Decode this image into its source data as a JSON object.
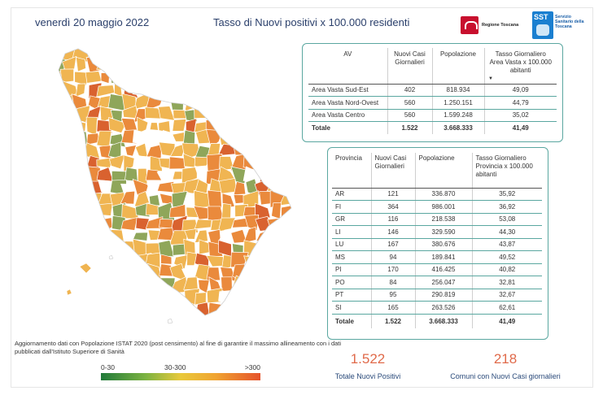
{
  "header": {
    "date": "venerdì 20 maggio 2022",
    "title": "Tasso di Nuovi positivi x 100.000 residenti",
    "logo_rt": "Regione Toscana",
    "logo_sst_mark": "SST",
    "logo_sst_text": "Servizio Sanitario della Toscana"
  },
  "area_vasta_table": {
    "headers": [
      "AV",
      "Nuovi Casi Giornalieri",
      "Popolazione",
      "Tasso Giornaliero Area Vasta x 100.000 abitanti"
    ],
    "rows": [
      [
        "Area Vasta Sud-Est",
        "402",
        "818.934",
        "49,09"
      ],
      [
        "Area Vasta Nord-Ovest",
        "560",
        "1.250.151",
        "44,79"
      ],
      [
        "Area Vasta Centro",
        "560",
        "1.599.248",
        "35,02"
      ]
    ],
    "total": [
      "Totale",
      "1.522",
      "3.668.333",
      "41,49"
    ]
  },
  "provincia_table": {
    "headers": [
      "Provincia",
      "Nuovi Casi Giornalieri",
      "Popolazione",
      "Tasso Giornaliero Provincia x 100.000 abitanti"
    ],
    "rows": [
      [
        "AR",
        "121",
        "336.870",
        "35,92"
      ],
      [
        "FI",
        "364",
        "986.001",
        "36,92"
      ],
      [
        "GR",
        "116",
        "218.538",
        "53,08"
      ],
      [
        "LI",
        "146",
        "329.590",
        "44,30"
      ],
      [
        "LU",
        "167",
        "380.676",
        "43,87"
      ],
      [
        "MS",
        "94",
        "189.841",
        "49,52"
      ],
      [
        "PI",
        "170",
        "416.425",
        "40,82"
      ],
      [
        "PO",
        "84",
        "256.047",
        "32,81"
      ],
      [
        "PT",
        "95",
        "290.819",
        "32,67"
      ],
      [
        "SI",
        "165",
        "263.526",
        "62,61"
      ]
    ],
    "total": [
      "Totale",
      "1.522",
      "3.668.333",
      "41,49"
    ]
  },
  "footnote": "Aggiornamento dati con Popolazione ISTAT 2020 (post censimento) al fine di garantire il massimo allineamento con i dati pubblicati dall'Istituto Superiore di Sanità",
  "legend": {
    "labels": [
      "0-30",
      "30-300",
      ">300"
    ],
    "colors": [
      "#217a3a",
      "#7cb342",
      "#e9c93b",
      "#f0a432",
      "#e5532c"
    ]
  },
  "kpis": [
    {
      "value": "1.522",
      "label": "Totale Nuovi Positivi"
    },
    {
      "value": "218",
      "label": "Comuni con Nuovi Casi giornalieri"
    }
  ],
  "map_colors": {
    "no_data": "#ffffff",
    "low": "#8fa65a",
    "mid": "#f0b552",
    "high": "#ea8a3c",
    "very_high": "#d9622f",
    "border": "#ffffff"
  }
}
